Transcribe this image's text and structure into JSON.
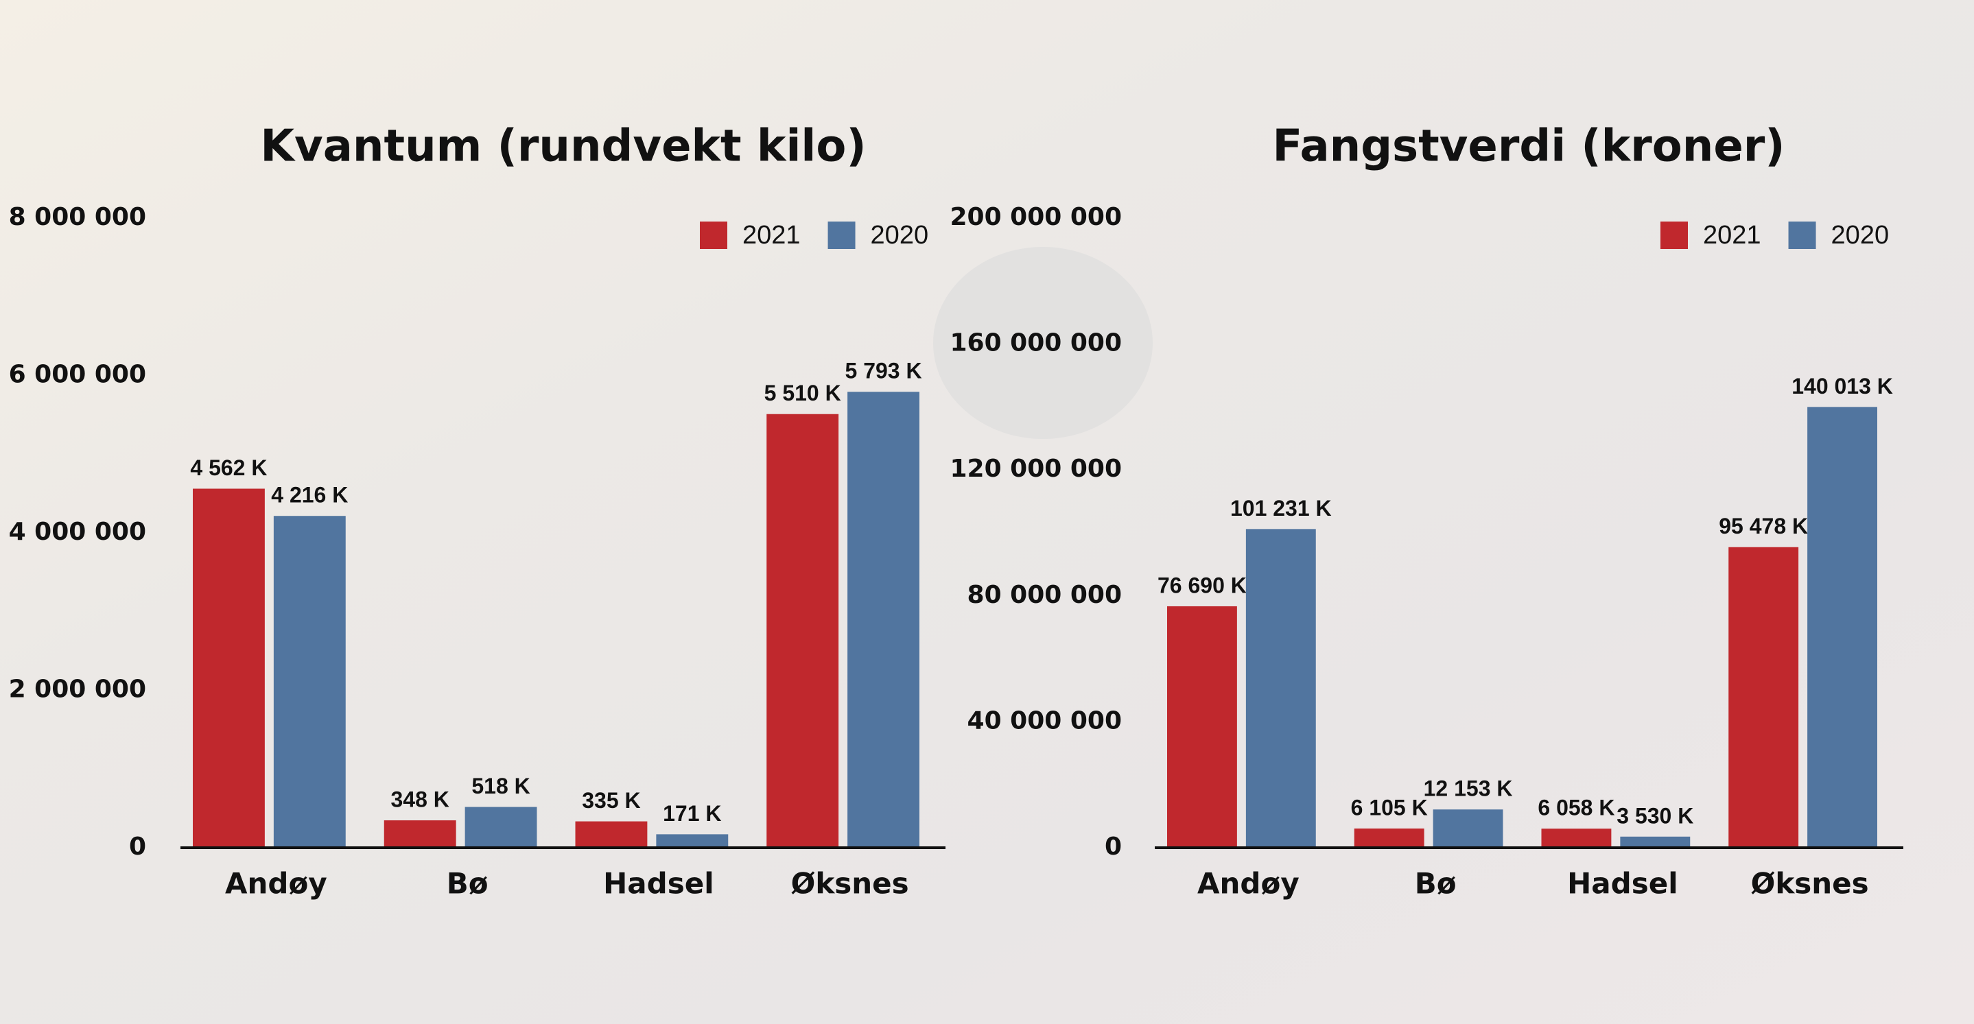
{
  "chart_data": [
    {
      "type": "bar",
      "title": "Kvantum (rundvekt kilo)",
      "categories": [
        "Andøy",
        "Bø",
        "Hadsel",
        "Øksnes"
      ],
      "series": [
        {
          "name": "2021",
          "color": "#c0282d",
          "values": [
            4562000,
            348000,
            335000,
            5510000
          ],
          "value_labels": [
            "4 562 K",
            "348 K",
            "335 K",
            "5 510 K"
          ]
        },
        {
          "name": "2020",
          "color": "#51759f",
          "values": [
            4216000,
            518000,
            171000,
            5793000
          ],
          "value_labels": [
            "4 216 K",
            "518 K",
            "171 K",
            "5 793 K"
          ]
        }
      ],
      "ylim": [
        0,
        8000000
      ],
      "yticks": [
        0,
        {
          "value": 2000000,
          "label": "2 000 000"
        },
        {
          "value": 4000000,
          "label": "4 000 000"
        },
        {
          "value": 6000000,
          "label": "6 000 000"
        },
        {
          "value": 8000000,
          "label": "8 000 000"
        }
      ],
      "grid": false,
      "legend": "top-right"
    },
    {
      "type": "bar",
      "title": "Fangstverdi (kroner)",
      "categories": [
        "Andøy",
        "Bø",
        "Hadsel",
        "Øksnes"
      ],
      "series": [
        {
          "name": "2021",
          "color": "#c0282d",
          "values": [
            76690000,
            6105000,
            6058000,
            95478000
          ],
          "value_labels": [
            "76 690 K",
            "6 105 K",
            "6 058 K",
            "95 478 K"
          ]
        },
        {
          "name": "2020",
          "color": "#51759f",
          "values": [
            101231000,
            12153000,
            3530000,
            140013000
          ],
          "value_labels": [
            "101 231 K",
            "12 153 K",
            "3 530 K",
            "140 013 K"
          ]
        }
      ],
      "ylim": [
        0,
        200000000
      ],
      "yticks": [
        0,
        {
          "value": 40000000,
          "label": "40 000 000"
        },
        {
          "value": 80000000,
          "label": "80 000 000"
        },
        {
          "value": 120000000,
          "label": "120 000 000"
        },
        {
          "value": 160000000,
          "label": "160 000 000"
        },
        {
          "value": 200000000,
          "label": "200 000 000"
        }
      ],
      "grid": false,
      "legend": "top-right"
    }
  ]
}
